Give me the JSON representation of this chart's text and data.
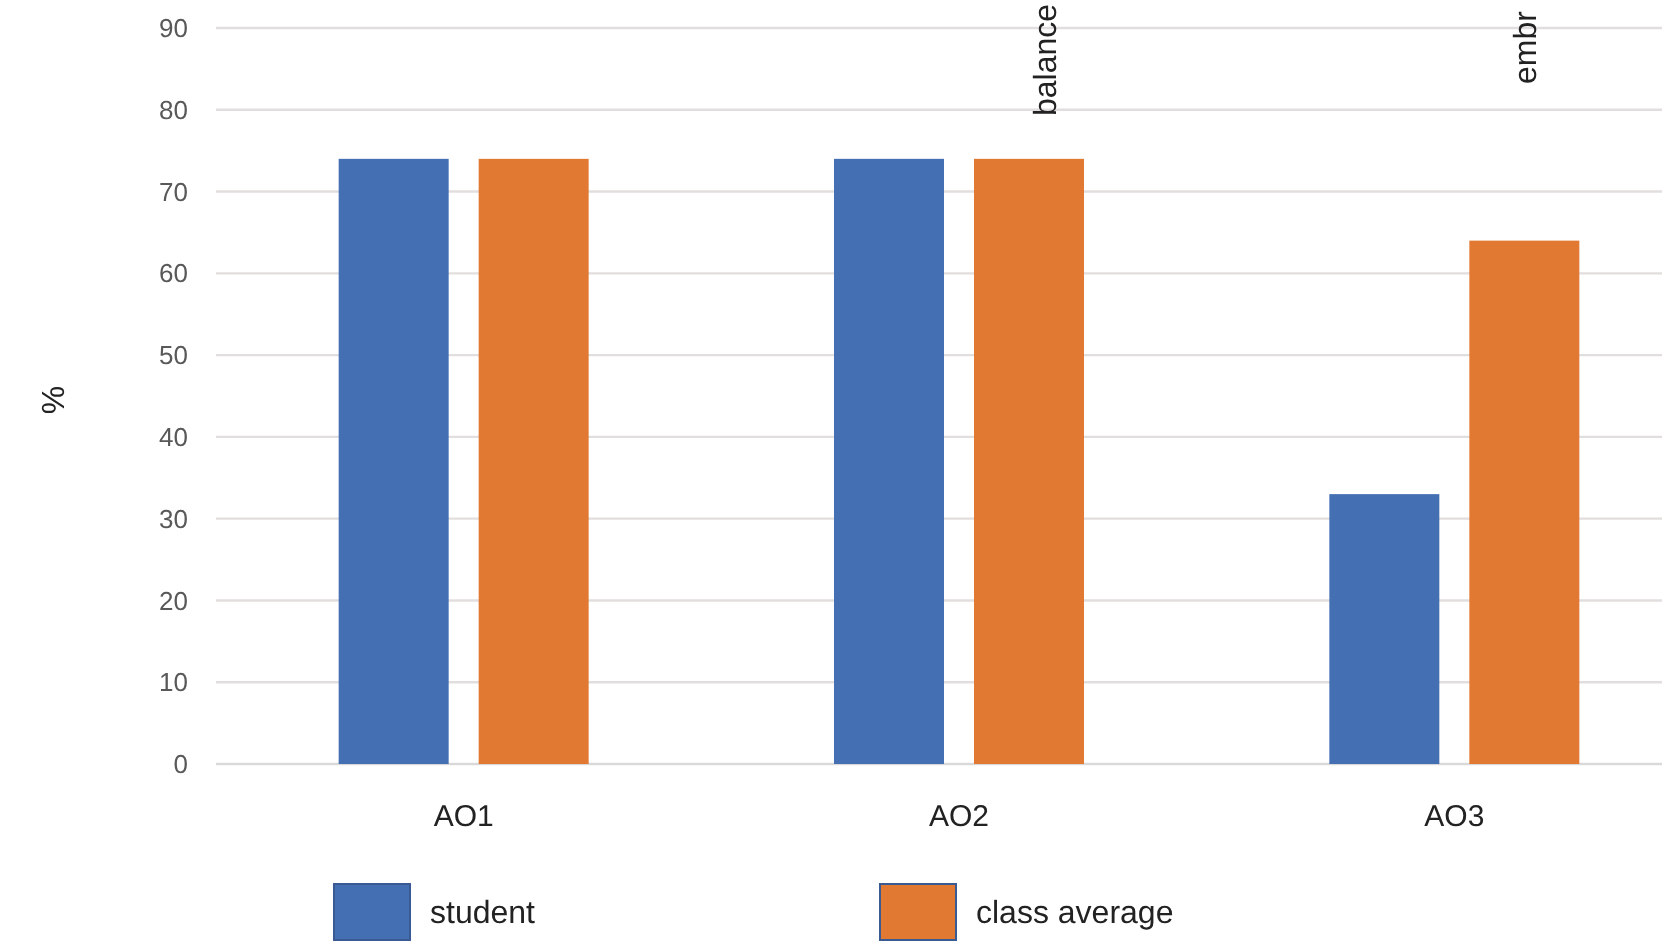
{
  "chart_data": {
    "type": "bar",
    "ylabel": "%",
    "categories": [
      "AO1",
      "AO2",
      "AO3"
    ],
    "series": [
      {
        "name": "student",
        "color": "#4470b3",
        "values": [
          74,
          74,
          33
        ]
      },
      {
        "name": "class average",
        "color": "#e27933",
        "values": [
          74,
          74,
          64
        ]
      }
    ],
    "ylim": [
      0,
      90
    ],
    "yticks": [
      0,
      10,
      20,
      30,
      40,
      50,
      60,
      70,
      80,
      90
    ],
    "grid": "y",
    "legend": "bottom",
    "annotations": [
      "balance",
      "embr"
    ]
  }
}
